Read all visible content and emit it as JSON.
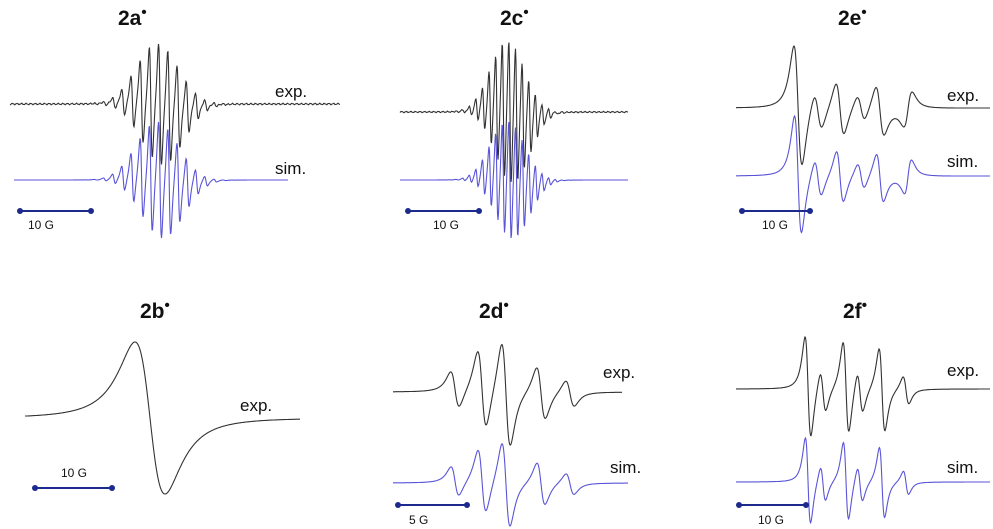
{
  "colors": {
    "exp_trace": "#333333",
    "sim_trace": "#5a55d8",
    "scale_bar": "#1b2a8c",
    "text": "#111111"
  },
  "panels": [
    {
      "id": "2a",
      "title": "2a",
      "radical_mark": "•",
      "exp_label": "exp.",
      "sim_label": "sim.",
      "scale_label": "10 G"
    },
    {
      "id": "2c",
      "title": "2c",
      "radical_mark": "•",
      "exp_label": "",
      "sim_label": "",
      "scale_label": "10 G"
    },
    {
      "id": "2e",
      "title": "2e",
      "radical_mark": "•",
      "exp_label": "exp.",
      "sim_label": "sim.",
      "scale_label": "10 G"
    },
    {
      "id": "2b",
      "title": "2b",
      "radical_mark": "•",
      "exp_label": "exp.",
      "sim_label": "",
      "scale_label": "10 G"
    },
    {
      "id": "2d",
      "title": "2d",
      "radical_mark": "•",
      "exp_label": "exp.",
      "sim_label": "sim.",
      "scale_label": "5 G"
    },
    {
      "id": "2f",
      "title": "2f",
      "radical_mark": "•",
      "exp_label": "exp.",
      "sim_label": "sim.",
      "scale_label": "10 G"
    }
  ]
}
